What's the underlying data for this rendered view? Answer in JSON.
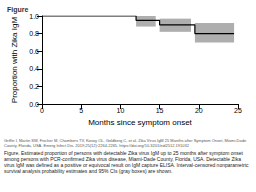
{
  "header": "Figure",
  "chart_data": {
    "type": "line",
    "xlabel": "Months since symptom onset",
    "ylabel": "Proportion with Zika IgM",
    "xlim": [
      0,
      25
    ],
    "xticks": [
      0,
      5,
      10,
      15,
      20,
      25
    ],
    "ylim": [
      0,
      1
    ],
    "yticks": [
      {
        "value": 0,
        "label": "0.0"
      },
      0.2,
      0.4,
      0.6,
      0.8,
      {
        "value": 1,
        "label": "1.0"
      }
    ],
    "grid": false,
    "series": [
      {
        "type": "line",
        "color": "#000000",
        "line_style": "step",
        "x": [
          0,
          12,
          15,
          19.5,
          24.5
        ],
        "values": [
          1.0,
          0.95,
          0.9,
          0.8,
          0.8
        ]
      },
      {
        "type": "interval",
        "color": "#9a9a9a",
        "x_start": [
          12,
          15,
          19.5
        ],
        "x_end": [
          14.5,
          19,
          24.5
        ],
        "low": [
          0.88,
          0.82,
          0.7
        ],
        "high": [
          1.0,
          0.97,
          0.92
        ]
      }
    ]
  },
  "citation": "Griffin I, Martin SW, Fischer M, Chambers TV, Kosoy OL, Goldberg C, et al. Zika Virus IgM 25 Months after Symptom Onset, Miami-Dade County, Florida, USA. Emerg Infect Dis. 2019;25(12):2264-2265. https://doi.org/10.3201/eid2512.191032",
  "caption": "Figure. Estimated proportion of persons with detectable Zika virus IgM up to 25 months after symptom onset among persons with PCR-confirmed Zika virus disease, Miami-Dade County, Florida, USA. Detectable Zika virus IgM was defined as a positive or equivocal result on IgM capture ELISA. Interval-censored nonparametric survival analysis probability estimates and 95% CIs (gray boxes) are shown."
}
